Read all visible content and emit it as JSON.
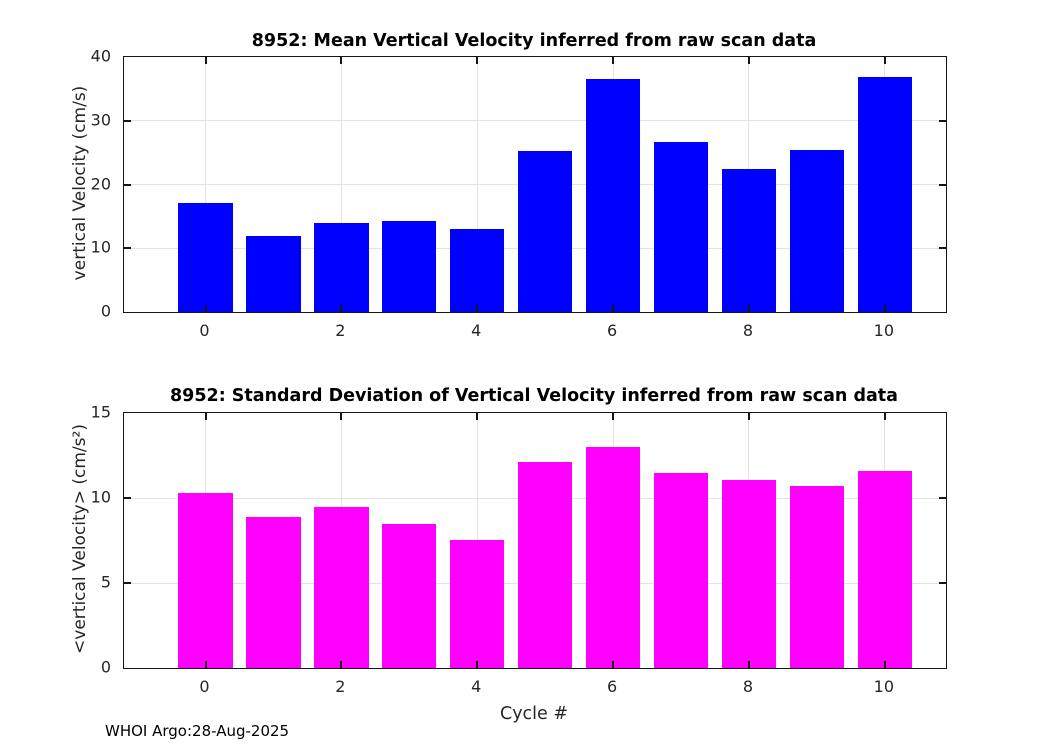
{
  "figure": {
    "footer": "WHOI Argo:28-Aug-2025",
    "xlabel": "Cycle #",
    "background": "#ffffff"
  },
  "colors": {
    "axis": "#151515",
    "grid": "#e3e3e3",
    "tick_label": "#262626",
    "title": "#000000",
    "mean_bar": "#0000ff",
    "std_bar": "#ff00ff"
  },
  "chart_data": [
    {
      "type": "bar",
      "title": "8952: Mean Vertical Velocity inferred from raw scan data",
      "ylabel": "vertical Velocity (cm/s)",
      "xlabel": "",
      "categories": [
        0,
        1,
        2,
        3,
        4,
        5,
        6,
        7,
        8,
        9,
        10
      ],
      "values": [
        17.1,
        11.9,
        14.0,
        14.3,
        13.0,
        25.3,
        36.6,
        26.6,
        22.5,
        25.4,
        36.8
      ],
      "bar_color": "#0000ff",
      "bar_width": 0.8,
      "ylim": [
        0,
        40
      ],
      "yticks": [
        0,
        10,
        20,
        30,
        40
      ],
      "xticks": [
        0,
        2,
        4,
        6,
        8,
        10
      ],
      "xlim": [
        -1.2,
        10.9
      ],
      "grid": true,
      "legend": null
    },
    {
      "type": "bar",
      "title": "8952: Standard Deviation of Vertical Velocity inferred from raw scan data",
      "ylabel": "<vertical Velocity> (cm/s²)",
      "xlabel": "Cycle #",
      "categories": [
        0,
        1,
        2,
        3,
        4,
        5,
        6,
        7,
        8,
        9,
        10
      ],
      "values": [
        10.3,
        8.9,
        9.5,
        8.5,
        7.55,
        12.1,
        13.0,
        11.45,
        11.05,
        10.7,
        11.6
      ],
      "bar_color": "#ff00ff",
      "bar_width": 0.8,
      "ylim": [
        0,
        15
      ],
      "yticks": [
        0,
        5,
        10,
        15
      ],
      "xticks": [
        0,
        2,
        4,
        6,
        8,
        10
      ],
      "xlim": [
        -1.2,
        10.9
      ],
      "grid": true,
      "legend": null
    }
  ]
}
